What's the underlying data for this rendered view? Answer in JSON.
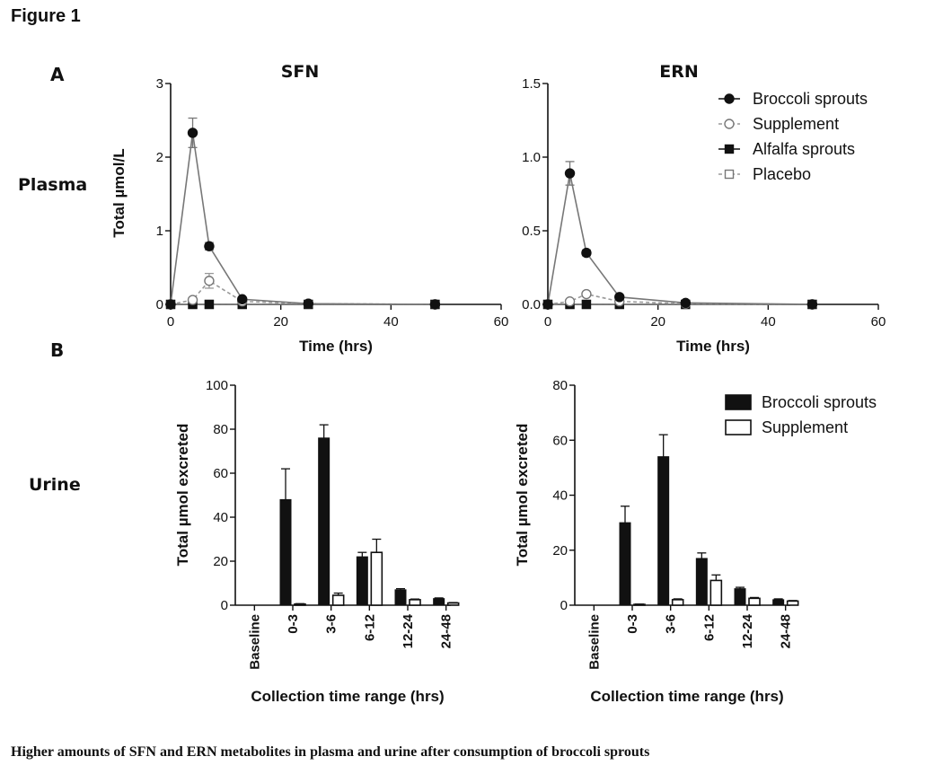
{
  "figure": {
    "title": "Figure 1",
    "panel_a": "A",
    "panel_b": "B",
    "row_plasma": "Plasma",
    "row_urine": "Urine",
    "caption": "Higher amounts of SFN and ERN metabolites in plasma and urine after consumption of broccoli sprouts"
  },
  "colors": {
    "dark": "#111111",
    "grey": "#777777",
    "light": "#999999"
  },
  "chart_data": [
    {
      "id": "sfn_plasma",
      "type": "line",
      "title": "SFN",
      "xlabel": "Time (hrs)",
      "ylabel": "Total µmol/L",
      "xlim": [
        0,
        60
      ],
      "ylim": [
        0,
        3
      ],
      "xticks": [
        "0",
        "20",
        "40",
        "60"
      ],
      "yticks": [
        "0",
        "1",
        "2",
        "3"
      ],
      "legend": false,
      "series": [
        {
          "name": "Broccoli sprouts",
          "marker": "circle-filled",
          "dash": false,
          "x": [
            0,
            4,
            7,
            13,
            25,
            48
          ],
          "y": [
            0,
            2.33,
            0.79,
            0.07,
            0.01,
            0
          ],
          "err": [
            0,
            0.2,
            0.05,
            0.02,
            0,
            0
          ]
        },
        {
          "name": "Supplement",
          "marker": "circle-open",
          "dash": true,
          "x": [
            0,
            4,
            7,
            13,
            25,
            48
          ],
          "y": [
            0,
            0.06,
            0.32,
            0.04,
            0.01,
            0
          ],
          "err": [
            0,
            0.02,
            0.1,
            0.01,
            0,
            0
          ]
        },
        {
          "name": "Alfalfa sprouts",
          "marker": "square-filled",
          "dash": false,
          "x": [
            0,
            4,
            7,
            13,
            25,
            48
          ],
          "y": [
            0,
            0,
            0,
            0,
            0,
            0
          ],
          "err": [
            0,
            0,
            0,
            0,
            0,
            0
          ]
        },
        {
          "name": "Placebo",
          "marker": "square-open",
          "dash": true,
          "x": [
            0,
            4,
            7,
            13,
            25,
            48
          ],
          "y": [
            0,
            0,
            0,
            0,
            0,
            0
          ],
          "err": [
            0,
            0,
            0,
            0,
            0,
            0
          ]
        }
      ]
    },
    {
      "id": "ern_plasma",
      "type": "line",
      "title": "ERN",
      "xlabel": "Time (hrs)",
      "ylabel": "",
      "xlim": [
        0,
        60
      ],
      "ylim": [
        0,
        1.5
      ],
      "xticks": [
        "0",
        "20",
        "40",
        "60"
      ],
      "yticks": [
        "0.0",
        "0.5",
        "1.0",
        "1.5"
      ],
      "legend": true,
      "legend_position": "top-right",
      "series": [
        {
          "name": "Broccoli sprouts",
          "marker": "circle-filled",
          "dash": false,
          "x": [
            0,
            4,
            7,
            13,
            25,
            48
          ],
          "y": [
            0,
            0.89,
            0.35,
            0.05,
            0.01,
            0
          ],
          "err": [
            0,
            0.08,
            0.02,
            0.01,
            0,
            0
          ]
        },
        {
          "name": "Supplement",
          "marker": "circle-open",
          "dash": true,
          "x": [
            0,
            4,
            7,
            13,
            25,
            48
          ],
          "y": [
            0,
            0.02,
            0.07,
            0.02,
            0.005,
            0
          ],
          "err": [
            0,
            0.005,
            0.01,
            0,
            0,
            0
          ]
        },
        {
          "name": "Alfalfa sprouts",
          "marker": "square-filled",
          "dash": false,
          "x": [
            0,
            4,
            7,
            13,
            25,
            48
          ],
          "y": [
            0,
            0,
            0,
            0,
            0,
            0
          ],
          "err": [
            0,
            0,
            0,
            0,
            0,
            0
          ]
        },
        {
          "name": "Placebo",
          "marker": "square-open",
          "dash": true,
          "x": [
            0,
            4,
            7,
            13,
            25,
            48
          ],
          "y": [
            0,
            0,
            0,
            0,
            0,
            0
          ],
          "err": [
            0,
            0,
            0,
            0,
            0,
            0
          ]
        }
      ]
    },
    {
      "id": "sfn_urine",
      "type": "bar",
      "title": "",
      "xlabel": "Collection time range (hrs)",
      "ylabel": "Total µmol excreted",
      "ylim": [
        0,
        100
      ],
      "yticks": [
        "0",
        "20",
        "40",
        "60",
        "80",
        "100"
      ],
      "categories": [
        "Baseline",
        "0-3",
        "3-6",
        "6-12",
        "12-24",
        "24-48"
      ],
      "legend": false,
      "series": [
        {
          "name": "Broccoli sprouts",
          "fill": "filled",
          "values": [
            0,
            48,
            76,
            22,
            7,
            3
          ],
          "err": [
            0,
            14,
            6,
            2,
            0.5,
            0.3
          ]
        },
        {
          "name": "Supplement",
          "fill": "open",
          "values": [
            0,
            0.5,
            4.5,
            24,
            2.5,
            1
          ],
          "err": [
            0,
            0.2,
            1,
            6,
            0.3,
            0.2
          ]
        }
      ]
    },
    {
      "id": "ern_urine",
      "type": "bar",
      "title": "",
      "xlabel": "Collection time range (hrs)",
      "ylabel": "Total µmol excreted",
      "ylim": [
        0,
        80
      ],
      "yticks": [
        "0",
        "20",
        "40",
        "60",
        "80"
      ],
      "categories": [
        "Baseline",
        "0-3",
        "3-6",
        "6-12",
        "12-24",
        "24-48"
      ],
      "legend": true,
      "legend_position": "top-right",
      "series": [
        {
          "name": "Broccoli sprouts",
          "fill": "filled",
          "values": [
            0,
            30,
            54,
            17,
            6,
            2
          ],
          "err": [
            0,
            6,
            8,
            2,
            0.5,
            0.3
          ]
        },
        {
          "name": "Supplement",
          "fill": "open",
          "values": [
            0,
            0.3,
            2,
            9,
            2.5,
            1.5
          ],
          "err": [
            0,
            0.1,
            0.3,
            2,
            0.3,
            0.2
          ]
        }
      ]
    }
  ]
}
